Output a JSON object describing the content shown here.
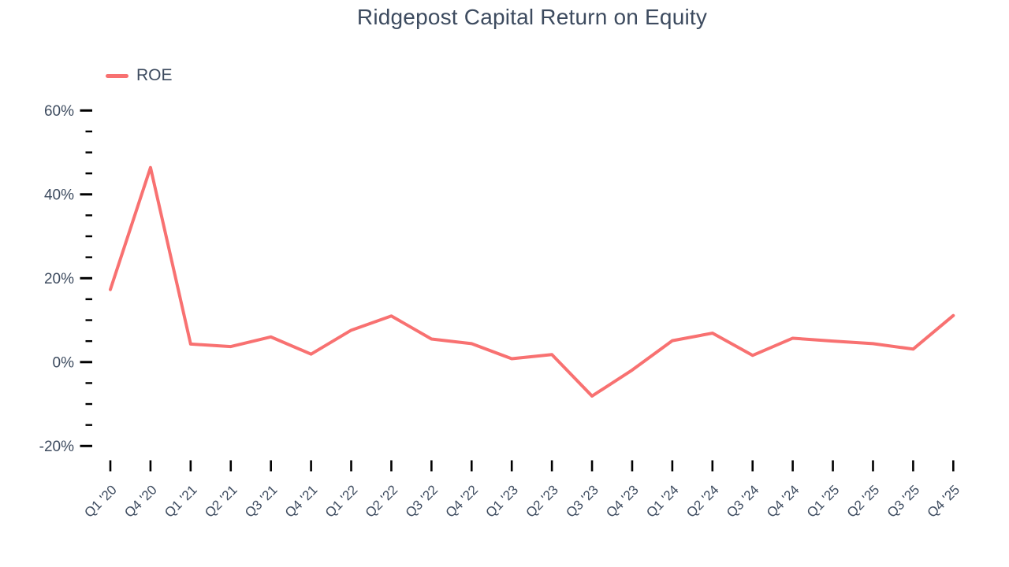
{
  "title": "Ridgepost Capital Return on Equity",
  "legend": {
    "position": "top-left",
    "items": [
      {
        "label": "ROE",
        "color": "#f87171"
      }
    ]
  },
  "colors": {
    "line": "#f87171",
    "text": "#3d4b5f",
    "tick": "#000000",
    "background": "#ffffff"
  },
  "chart_data": {
    "type": "line",
    "title": "Ridgepost Capital Return on Equity",
    "categories": [
      "Q1 '20",
      "Q4 '20",
      "Q1 '21",
      "Q2 '21",
      "Q3 '21",
      "Q4 '21",
      "Q1 '22",
      "Q2 '22",
      "Q3 '22",
      "Q4 '22",
      "Q1 '23",
      "Q2 '23",
      "Q3 '23",
      "Q4 '23",
      "Q1 '24",
      "Q2 '24",
      "Q3 '24",
      "Q4 '24",
      "Q1 '25",
      "Q2 '25",
      "Q3 '25",
      "Q4 '25"
    ],
    "series": [
      {
        "name": "ROE",
        "color": "#f87171",
        "values": [
          17.3,
          46.4,
          4.3,
          3.7,
          6.0,
          1.9,
          7.6,
          11.0,
          5.5,
          4.4,
          0.8,
          1.8,
          -8.1,
          -1.9,
          5.1,
          6.9,
          1.6,
          5.7,
          5.0,
          4.4,
          3.1,
          11.1
        ]
      }
    ],
    "xlabel": "",
    "ylabel": "",
    "y_axis": {
      "ticks": [
        {
          "value": 60,
          "label": "60%"
        },
        {
          "value": 40,
          "label": "40%"
        },
        {
          "value": 20,
          "label": "20%"
        },
        {
          "value": 0,
          "label": "0%"
        },
        {
          "value": -20,
          "label": "-20%"
        }
      ],
      "minor_tick_step": 5,
      "range": [
        -25,
        62
      ],
      "unit": "%"
    },
    "grid": false,
    "legend_position": "top-left",
    "x_tick_label_rotation": -45
  }
}
